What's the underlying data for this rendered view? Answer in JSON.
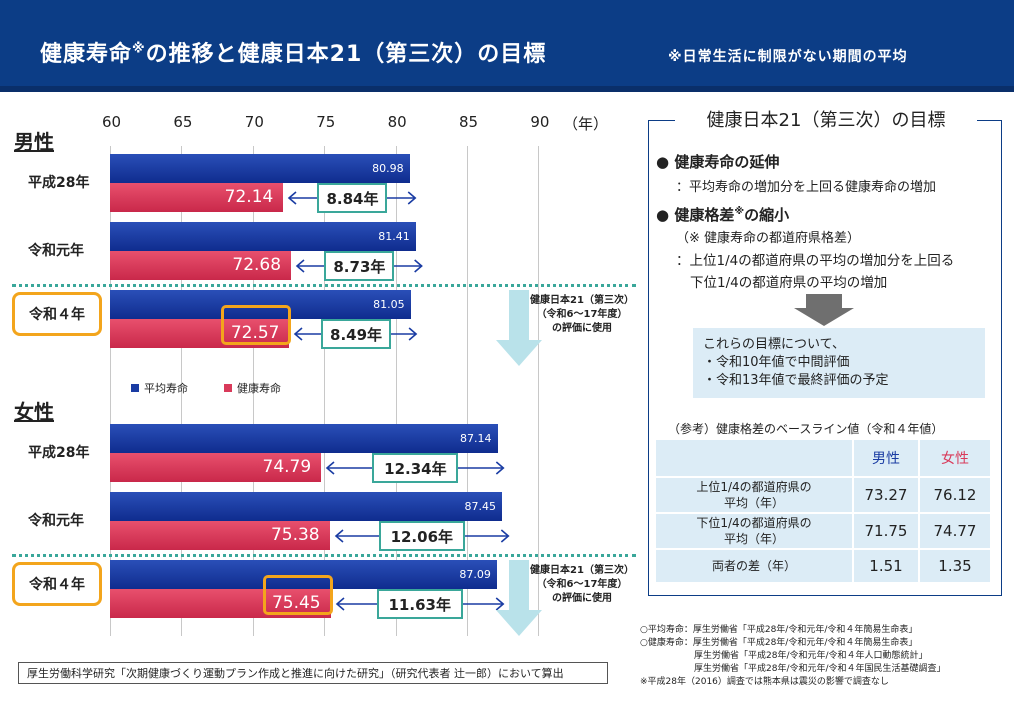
{
  "header": {
    "title": "健康寿命※の推移と健康日本21（第三次）の目標",
    "title_main": "健康寿命",
    "title_mark": "※",
    "title_rest": "の推移と健康日本21（第三次）の目標",
    "subtitle": "※日常生活に制限がない期間の平均"
  },
  "chart_data": {
    "type": "bar",
    "orientation": "horizontal",
    "x_axis": {
      "min": 60,
      "max": 90,
      "ticks": [
        "60",
        "65",
        "70",
        "75",
        "80",
        "85",
        "90"
      ],
      "unit": "（年）"
    },
    "legend": [
      "平均寿命",
      "健康寿命"
    ],
    "colors": {
      "average": "#1a3ca3",
      "healthy": "#d93a5a",
      "accent": "#f3a51c",
      "teal": "#3aa79a"
    },
    "groups": [
      {
        "name": "男性",
        "rows": [
          {
            "label": "平成28年",
            "average": 80.98,
            "healthy": 72.14,
            "diff": "8.84年",
            "highlight": false
          },
          {
            "label": "令和元年",
            "average": 81.41,
            "healthy": 72.68,
            "diff": "8.73年",
            "highlight": false
          },
          {
            "label": "令和４年",
            "average": 81.05,
            "healthy": 72.57,
            "diff": "8.49年",
            "highlight": true
          }
        ],
        "note": [
          "健康日本21（第三次）",
          "（令和6～17年度）",
          "の評価に使用"
        ]
      },
      {
        "name": "女性",
        "rows": [
          {
            "label": "平成28年",
            "average": 87.14,
            "healthy": 74.79,
            "diff": "12.34年",
            "highlight": false
          },
          {
            "label": "令和元年",
            "average": 87.45,
            "healthy": 75.38,
            "diff": "12.06年",
            "highlight": false
          },
          {
            "label": "令和４年",
            "average": 87.09,
            "healthy": 75.45,
            "diff": "11.63年",
            "highlight": true
          }
        ],
        "note": [
          "健康日本21（第三次）",
          "（令和6～17年度）",
          "の評価に使用"
        ]
      }
    ]
  },
  "goals": {
    "title": "健康日本21（第三次）の目標",
    "item1_head": "健康寿命の延伸",
    "item1_sub": "：平均寿命の増加分を上回る健康寿命の増加",
    "item2_head_main": "健康格差",
    "item2_head_mark": "※",
    "item2_head_rest": "の縮小",
    "item2_note": "（※ 健康寿命の都道府県格差）",
    "item2_sub1": "：上位1/4の都道府県の平均の増加分を上回る",
    "item2_sub2": "下位1/4の都道府県の平均の増加",
    "bullet": "●",
    "callout": [
      "これらの目標について、",
      "・令和10年値で中間評価",
      "・令和13年値で最終評価の予定"
    ]
  },
  "reference": {
    "caption": "（参考）健康格差のベースライン値（令和４年値）",
    "headers": [
      "",
      "男性",
      "女性"
    ],
    "rows": [
      {
        "label": [
          "上位1/4の都道府県の",
          "平均（年）"
        ],
        "male": "73.27",
        "female": "76.12"
      },
      {
        "label": [
          "下位1/4の都道府県の",
          "平均（年）"
        ],
        "male": "71.75",
        "female": "74.77"
      },
      {
        "label": [
          "両者の差（年）"
        ],
        "male": "1.51",
        "female": "1.35"
      }
    ]
  },
  "footer": {
    "source": "厚生労働科学研究「次期健康づくり運動プラン作成と推進に向けた研究」（研究代表者 辻一郎）において算出",
    "notes": [
      "○平均寿命：厚生労働省「平成28年/令和元年/令和４年簡易生命表」",
      "○健康寿命：厚生労働省「平成28年/令和元年/令和４年簡易生命表」",
      "　　　　　　厚生労働省「平成28年/令和元年/令和４年人口動態統計」",
      "　　　　　　厚生労働省「平成28年/令和元年/令和４年国民生活基礎調査」",
      "※平成28年（2016）調査では熊本県は震災の影響で調査なし"
    ]
  }
}
